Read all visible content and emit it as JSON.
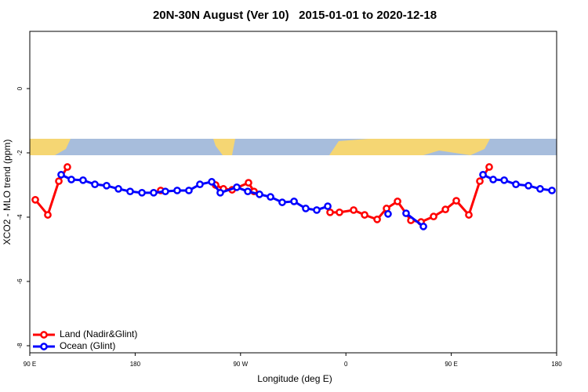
{
  "chart_data": {
    "type": "line",
    "title": "20N-30N August (Ver 10)   2015-01-01 to 2020-12-18",
    "xlabel": "Longitude (deg E)",
    "ylabel": "XCO2 - MLO trend (ppm)",
    "xlim": [
      90,
      540
    ],
    "ylim": [
      -8.22,
      1.78
    ],
    "xticks": [
      {
        "value": 90,
        "label": "90 E"
      },
      180,
      {
        "value": 270,
        "label": "90 W"
      },
      {
        "value": 360,
        "label": "0"
      },
      {
        "value": 450,
        "label": "90 E"
      },
      {
        "value": 540,
        "label": "180"
      }
    ],
    "yticks": [
      0,
      -2,
      -4,
      -6,
      -8
    ],
    "legend": "bottomleft",
    "series": [
      {
        "name": "Land (Nadir&Glint)",
        "color": "#ff0000",
        "x": [
          94.7,
          105.4,
          114.8,
          122.1,
          160,
          201.8,
          230,
          248.7,
          255.4,
          262.8,
          276.8,
          281.5,
          320,
          346.5,
          354.5,
          366.6,
          376.0,
          386.7,
          394.7,
          404.1,
          415.5,
          424.2,
          434.9,
          445.0,
          454.3,
          465.0,
          474.4,
          482.4
        ],
        "values": [
          -3.46,
          -3.93,
          -2.88,
          -2.44,
          null,
          -3.17,
          null,
          -3.0,
          -3.12,
          -3.15,
          -2.93,
          -3.2,
          null,
          -3.85,
          -3.85,
          -3.78,
          -3.93,
          -4.07,
          -3.73,
          -3.51,
          -4.1,
          -4.15,
          -3.98,
          -3.76,
          -3.49,
          -3.93,
          -2.88,
          -2.44
        ]
      },
      {
        "name": "Ocean (Glint)",
        "color": "#0000ff",
        "x": [
          116.8,
          125.5,
          135.5,
          145.6,
          155.6,
          165.7,
          175.7,
          185.8,
          195.8,
          205.8,
          215.9,
          225.9,
          235.3,
          245.4,
          252.7,
          266.8,
          276.2,
          286.2,
          295.6,
          305.6,
          315.7,
          325.7,
          335.1,
          344.5,
          370,
          396.0,
          406,
          411.4,
          426.2,
          450,
          477.1,
          485.8,
          495.2,
          505.2,
          515.9,
          525.9,
          536.0
        ],
        "values": [
          -2.68,
          -2.83,
          -2.85,
          -2.98,
          -3.02,
          -3.12,
          -3.2,
          -3.24,
          -3.24,
          -3.2,
          -3.17,
          -3.17,
          -2.98,
          -2.9,
          -3.24,
          -3.07,
          -3.2,
          -3.29,
          -3.37,
          -3.54,
          -3.51,
          -3.73,
          -3.78,
          -3.66,
          null,
          -3.9,
          null,
          -3.88,
          -4.29,
          null,
          -2.68,
          -2.83,
          -2.85,
          -2.98,
          -3.02,
          -3.12,
          -3.17
        ]
      }
    ]
  }
}
